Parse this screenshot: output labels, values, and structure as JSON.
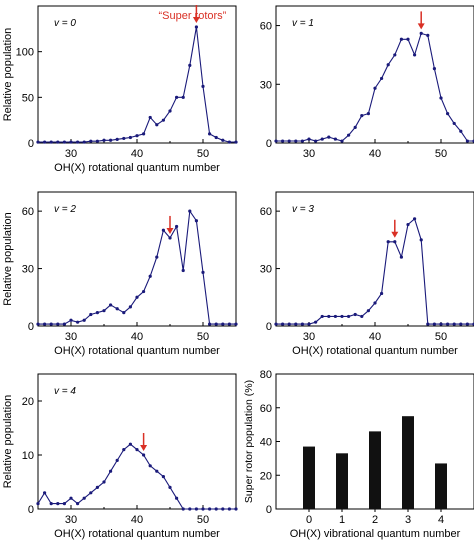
{
  "colors": {
    "line": "#1a1a7a",
    "arrow": "#d93025",
    "bar": "#111111",
    "axis": "#000000"
  },
  "chart_data": [
    {
      "type": "line",
      "annotation": "v = 0",
      "xlabel": "OH(X) rotational quantum number",
      "ylabel": "Relative population",
      "xlim": [
        25,
        55
      ],
      "ylim": [
        0,
        150
      ],
      "xticks": [
        30,
        40,
        50
      ],
      "yticks": [
        0,
        50,
        100
      ],
      "callout": "“Super rotors”",
      "arrow_x": 49,
      "series": [
        {
          "x": [
            25,
            26,
            27,
            28,
            29,
            30,
            31,
            32,
            33,
            34,
            35,
            36,
            37,
            38,
            39,
            40,
            41,
            42,
            43,
            44,
            45,
            46,
            47,
            48,
            49,
            50,
            51,
            52,
            53,
            54,
            55
          ],
          "values": [
            1,
            1,
            1,
            1,
            1,
            1,
            1,
            1,
            2,
            2,
            3,
            3,
            4,
            5,
            6,
            8,
            10,
            28,
            20,
            25,
            35,
            50,
            50,
            85,
            127,
            62,
            10,
            6,
            3,
            1,
            1
          ]
        }
      ]
    },
    {
      "type": "line",
      "annotation": "v = 1",
      "xlabel": "",
      "ylabel": "",
      "xlim": [
        25,
        55
      ],
      "ylim": [
        0,
        70
      ],
      "xticks": [
        30,
        40,
        50
      ],
      "yticks": [
        0,
        30,
        60
      ],
      "callout": "",
      "arrow_x": 47,
      "series": [
        {
          "x": [
            25,
            26,
            27,
            28,
            29,
            30,
            31,
            32,
            33,
            34,
            35,
            36,
            37,
            38,
            39,
            40,
            41,
            42,
            43,
            44,
            45,
            46,
            47,
            48,
            49,
            50,
            51,
            52,
            53,
            54,
            55
          ],
          "values": [
            1,
            1,
            1,
            1,
            1,
            2,
            1,
            2,
            3,
            2,
            1,
            4,
            8,
            14,
            15,
            28,
            33,
            40,
            45,
            53,
            53,
            45,
            56,
            55,
            38,
            23,
            15,
            10,
            6,
            1,
            1
          ]
        }
      ]
    },
    {
      "type": "line",
      "annotation": "v = 2",
      "xlabel": "OH(X) rotational quantum number",
      "ylabel": "Relative population",
      "xlim": [
        25,
        55
      ],
      "ylim": [
        0,
        70
      ],
      "xticks": [
        30,
        40,
        50
      ],
      "yticks": [
        0,
        30,
        60
      ],
      "callout": "",
      "arrow_x": 45,
      "series": [
        {
          "x": [
            25,
            26,
            27,
            28,
            29,
            30,
            31,
            32,
            33,
            34,
            35,
            36,
            37,
            38,
            39,
            40,
            41,
            42,
            43,
            44,
            45,
            46,
            47,
            48,
            49,
            50,
            51,
            52,
            53,
            54,
            55
          ],
          "values": [
            1,
            1,
            1,
            1,
            1,
            3,
            2,
            3,
            6,
            7,
            8,
            11,
            9,
            7,
            10,
            15,
            18,
            26,
            36,
            50,
            46,
            52,
            29,
            60,
            55,
            28,
            1,
            1,
            1,
            1,
            1
          ]
        }
      ]
    },
    {
      "type": "line",
      "annotation": "v = 3",
      "xlabel": "OH(X) rotational quantum number",
      "ylabel": "",
      "xlim": [
        25,
        55
      ],
      "ylim": [
        0,
        70
      ],
      "xticks": [
        30,
        40,
        50
      ],
      "yticks": [
        0,
        30,
        60
      ],
      "callout": "",
      "arrow_x": 43,
      "series": [
        {
          "x": [
            25,
            26,
            27,
            28,
            29,
            30,
            31,
            32,
            33,
            34,
            35,
            36,
            37,
            38,
            39,
            40,
            41,
            42,
            43,
            44,
            45,
            46,
            47,
            48,
            49,
            50,
            51,
            52,
            53,
            54,
            55
          ],
          "values": [
            1,
            1,
            1,
            1,
            1,
            1,
            2,
            5,
            5,
            5,
            5,
            5,
            6,
            5,
            8,
            12,
            17,
            44,
            44,
            36,
            53,
            56,
            45,
            1,
            1,
            1,
            1,
            1,
            1,
            1,
            1
          ]
        }
      ]
    },
    {
      "type": "line",
      "annotation": "v = 4",
      "xlabel": "OH(X) rotational quantum number",
      "ylabel": "Relative population",
      "xlim": [
        25,
        55
      ],
      "ylim": [
        0,
        25
      ],
      "xticks": [
        30,
        40,
        50
      ],
      "yticks": [
        0,
        10,
        20
      ],
      "callout": "",
      "arrow_x": 41,
      "series": [
        {
          "x": [
            25,
            26,
            27,
            28,
            29,
            30,
            31,
            32,
            33,
            34,
            35,
            36,
            37,
            38,
            39,
            40,
            41,
            42,
            43,
            44,
            45,
            46,
            47,
            48,
            49,
            50,
            51,
            52,
            53,
            54,
            55
          ],
          "values": [
            1,
            3,
            1,
            1,
            1,
            2,
            1,
            2,
            3,
            4,
            5,
            7,
            9,
            11,
            12,
            11,
            10,
            8,
            7,
            6,
            4,
            2,
            0,
            0,
            0,
            0,
            0,
            0,
            0,
            0,
            0
          ]
        }
      ]
    },
    {
      "type": "bar",
      "annotation": "",
      "xlabel": "OH(X) vibrational quantum number",
      "ylabel": "Super rotor population (%)",
      "categories": [
        "0",
        "1",
        "2",
        "3",
        "4"
      ],
      "values": [
        37,
        33,
        46,
        55,
        27
      ],
      "ylim": [
        0,
        80
      ],
      "yticks": [
        0,
        20,
        40,
        60,
        80
      ]
    }
  ]
}
